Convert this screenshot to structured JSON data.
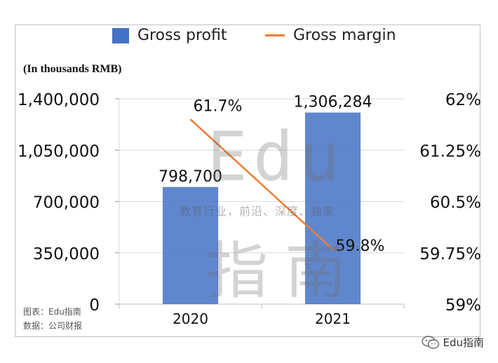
{
  "chart_data": {
    "type": "bar",
    "categories": [
      "2020",
      "2021"
    ],
    "series": [
      {
        "name": "Gross profit",
        "type": "bar",
        "axis": "left",
        "color": "#4472c4",
        "values": [
          798700,
          1306284
        ],
        "labels": [
          "798,700",
          "1,306,284"
        ]
      },
      {
        "name": "Gross margin",
        "type": "line",
        "axis": "right",
        "color": "#ed7d31",
        "values": [
          61.7,
          59.8
        ],
        "labels": [
          "61.7%",
          "59.8%"
        ]
      }
    ],
    "unit_note": "(In thousands RMB)",
    "left_axis": {
      "ylim": [
        0,
        1400000
      ],
      "ticks": [
        "0",
        "350,000",
        "700,000",
        "1,050,000",
        "1,400,000"
      ]
    },
    "right_axis": {
      "ylim": [
        59,
        62
      ],
      "ticks": [
        "59%",
        "59.75%",
        "60.5%",
        "61.25%",
        "62%"
      ]
    },
    "grid": true,
    "legend_position": "top"
  },
  "legend": {
    "bar_label": "Gross profit",
    "line_label": "Gross margin"
  },
  "source": {
    "line1": "图表：Edu指南",
    "line2": "数据：公司财报"
  },
  "watermark": {
    "latin": "Edu",
    "slogan": "教育行业，前沿、深度、独家",
    "chinese": "指南"
  },
  "footer": {
    "brand": "Edu指南"
  }
}
